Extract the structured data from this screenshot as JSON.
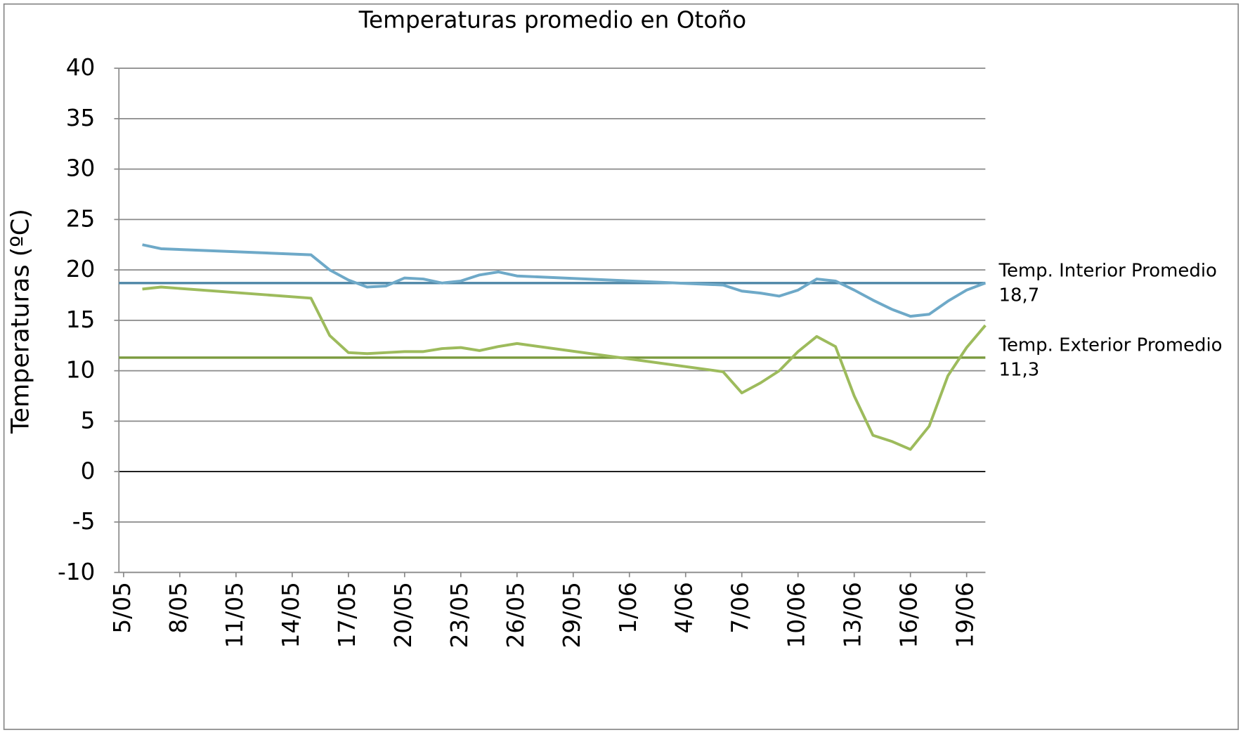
{
  "chart_data": {
    "type": "line",
    "title": "Temperaturas promedio en Otoño",
    "y_label": "Temperaturas (ºC)",
    "x": [
      1,
      2,
      10,
      11,
      12,
      13,
      14,
      15,
      16,
      17,
      18,
      19,
      20,
      21,
      32,
      33,
      34,
      35,
      36,
      37,
      38,
      39,
      40,
      41,
      42,
      43,
      44,
      45,
      46
    ],
    "xlim": [
      -0.25,
      46
    ],
    "xticks": [
      {
        "value": 0,
        "label": "5/05"
      },
      {
        "value": 3,
        "label": "8/05"
      },
      {
        "value": 6,
        "label": "11/05"
      },
      {
        "value": 9,
        "label": "14/05"
      },
      {
        "value": 12,
        "label": "17/05"
      },
      {
        "value": 15,
        "label": "20/05"
      },
      {
        "value": 18,
        "label": "23/05"
      },
      {
        "value": 21,
        "label": "26/05"
      },
      {
        "value": 24,
        "label": "29/05"
      },
      {
        "value": 27,
        "label": "1/06"
      },
      {
        "value": 30,
        "label": "4/06"
      },
      {
        "value": 33,
        "label": "7/06"
      },
      {
        "value": 36,
        "label": "10/06"
      },
      {
        "value": 39,
        "label": "13/06"
      },
      {
        "value": 42,
        "label": "16/06"
      },
      {
        "value": 45,
        "label": "19/06"
      }
    ],
    "ylim": [
      -10,
      40
    ],
    "yticks": [
      -10,
      -5,
      0,
      5,
      10,
      15,
      20,
      25,
      30,
      35,
      40
    ],
    "grid": true,
    "series": [
      {
        "color": "#6ea9c8",
        "values": [
          22.5,
          22.1,
          21.5,
          20.0,
          19.0,
          18.3,
          18.4,
          19.2,
          19.1,
          18.7,
          18.9,
          19.5,
          19.8,
          19.4,
          18.5,
          17.9,
          17.7,
          17.4,
          18.0,
          19.1,
          18.9,
          18.0,
          17.0,
          16.1,
          15.4,
          15.6,
          16.9,
          18.0,
          18.7
        ]
      },
      {
        "color": "#9dbb5c",
        "values": [
          18.1,
          18.3,
          17.2,
          13.5,
          11.8,
          11.7,
          11.8,
          11.9,
          11.9,
          12.2,
          12.3,
          12.0,
          12.4,
          12.7,
          9.9,
          7.8,
          8.8,
          10.0,
          11.9,
          13.4,
          12.4,
          7.5,
          3.6,
          3.0,
          2.2,
          4.5,
          9.5,
          12.3,
          14.5
        ]
      }
    ],
    "reference_lines": [
      {
        "label": "Temp. Interior Promedio",
        "value": 18.7,
        "value_label": "18,7",
        "color": "#4d86a6"
      },
      {
        "label": "Temp. Exterior Promedio",
        "value": 11.3,
        "value_label": "11,3",
        "color": "#7a9a3e"
      }
    ]
  }
}
